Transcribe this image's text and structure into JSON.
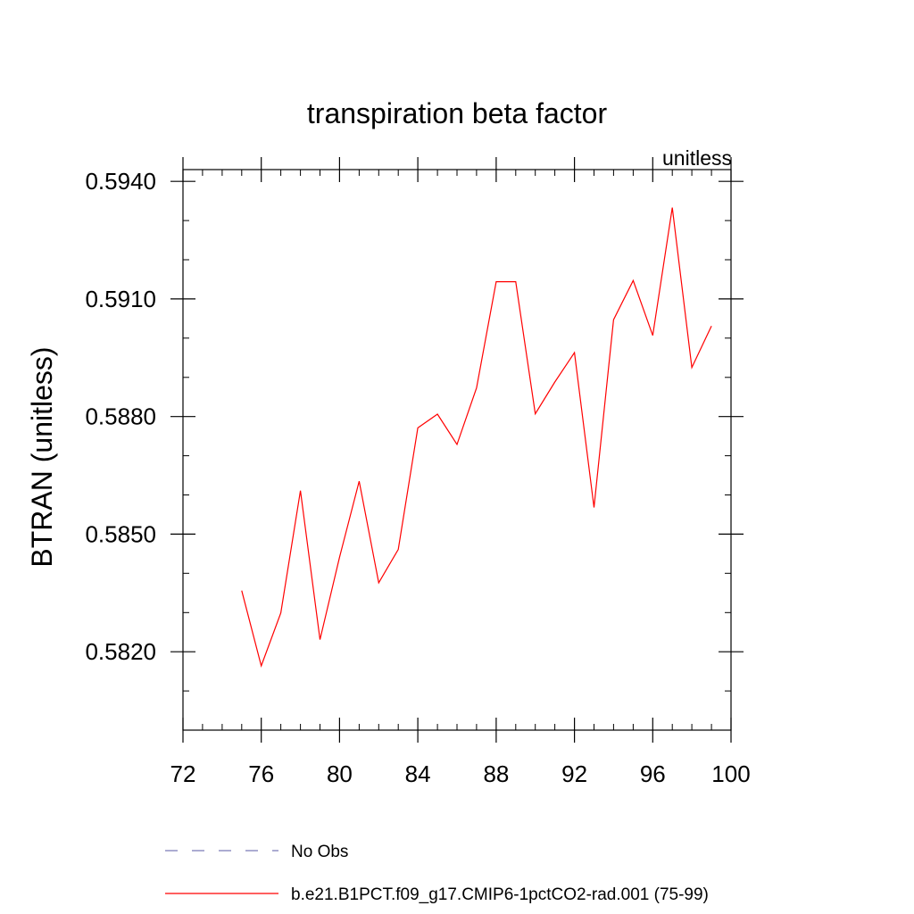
{
  "chart_data": {
    "type": "line",
    "title": "transpiration beta factor",
    "units_label": "unitless",
    "ylabel": "BTRAN  (unitless)",
    "xlabel": "",
    "xlim": [
      72,
      100
    ],
    "ylim": [
      0.58,
      0.5943
    ],
    "x_ticks": [
      72,
      76,
      80,
      84,
      88,
      92,
      96,
      100
    ],
    "x_tick_labels": [
      "72",
      "76",
      "80",
      "84",
      "88",
      "92",
      "96",
      "100"
    ],
    "x_minor_step": 1,
    "y_ticks": [
      0.582,
      0.585,
      0.588,
      0.591,
      0.594
    ],
    "y_tick_labels": [
      "0.5820",
      "0.5850",
      "0.5880",
      "0.5910",
      "0.5940"
    ],
    "y_minor_step": 0.001,
    "grid": false,
    "legend": {
      "placement": "bottom",
      "entries": [
        {
          "label": "No Obs",
          "color": "#7b7bb8",
          "style": "dashed"
        },
        {
          "label": "b.e21.B1PCT.f09_g17.CMIP6-1pctCO2-rad.001 (75-99)",
          "color": "#ff0000",
          "style": "solid"
        }
      ]
    },
    "series": [
      {
        "name": "b.e21.B1PCT.f09_g17.CMIP6-1pctCO2-rad.001 (75-99)",
        "color": "#ff0000",
        "x": [
          75,
          76,
          77,
          78,
          79,
          80,
          81,
          82,
          83,
          84,
          85,
          86,
          87,
          88,
          89,
          90,
          91,
          92,
          93,
          94,
          95,
          96,
          97,
          98,
          99
        ],
        "y": [
          0.58356,
          0.58164,
          0.58299,
          0.58611,
          0.58231,
          0.58441,
          0.58635,
          0.58376,
          0.58461,
          0.58771,
          0.58806,
          0.58729,
          0.58873,
          0.59144,
          0.59144,
          0.58807,
          0.58888,
          0.58963,
          0.58568,
          0.59047,
          0.59147,
          0.59007,
          0.59333,
          0.58925,
          0.59031
        ]
      }
    ]
  }
}
